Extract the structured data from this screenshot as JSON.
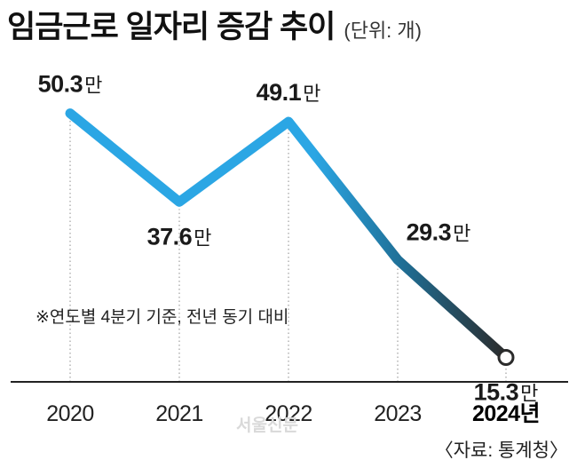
{
  "title": "임금근로 일자리 증감 추이",
  "unit_label": "(단위: 개)",
  "note": "※연도별 4분기 기준, 전년 동기 대비",
  "watermark": "서울신문",
  "source": "〈자료: 통계청〉",
  "value_suffix": "만",
  "colors": {
    "line_blue": "#2ba6e4",
    "line_mid": "#1f6f96",
    "line_dark": "#2b2b2b",
    "axis": "#222222",
    "grid": "#b3b3b3"
  },
  "chart_data": {
    "type": "line",
    "title": "임금근로 일자리 증감 추이",
    "unit": "개",
    "categories": [
      "2020",
      "2021",
      "2022",
      "2023",
      "2024년"
    ],
    "values": [
      50.3,
      37.6,
      49.1,
      29.3,
      15.3
    ],
    "value_labels": [
      "50.3",
      "37.6",
      "49.1",
      "29.3",
      "15.3"
    ],
    "last_point_marker": "open-circle",
    "grid": "vertical-dotted"
  }
}
